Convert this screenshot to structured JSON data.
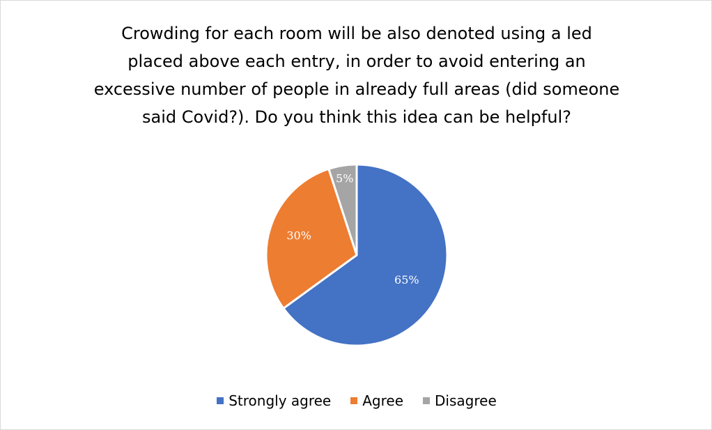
{
  "chart_data": {
    "type": "pie",
    "title_lines": [
      "Crowding for each room will be also denoted using a led",
      "placed above each entry, in order to avoid entering an",
      "excessive number of people in already full areas (did someone",
      "said Covid?). Do you think this idea can be helpful?"
    ],
    "categories": [
      "Strongly agree",
      "Agree",
      "Disagree"
    ],
    "values": [
      65,
      30,
      5
    ],
    "labels": [
      "65%",
      "30%",
      "5%"
    ],
    "colors": [
      "#4472C4",
      "#ED7D31",
      "#A5A5A5"
    ],
    "start_angle_deg": 0,
    "direction": "clockwise",
    "legend_position": "bottom"
  }
}
